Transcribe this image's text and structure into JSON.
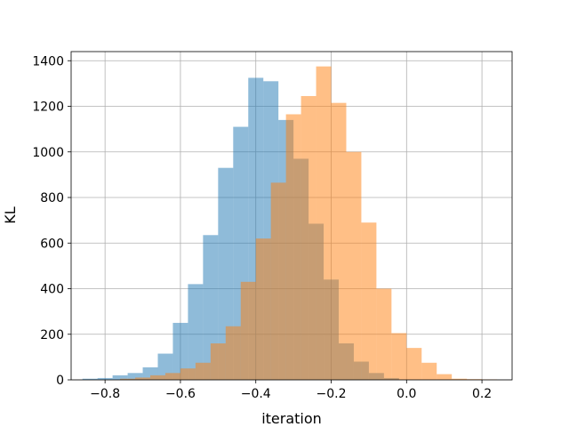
{
  "chart_data": {
    "type": "bar",
    "title": "",
    "xlabel": "iteration",
    "ylabel": "KL",
    "xlim": [
      -0.89,
      0.28
    ],
    "ylim": [
      0,
      1440
    ],
    "xticks": [
      -0.8,
      -0.6,
      -0.4,
      -0.2,
      0.0,
      0.2
    ],
    "xtick_labels": [
      "−0.8",
      "−0.6",
      "−0.4",
      "−0.2",
      "0.0",
      "0.2"
    ],
    "yticks": [
      0,
      200,
      400,
      600,
      800,
      1000,
      1200,
      1400
    ],
    "ytick_labels": [
      "0",
      "200",
      "400",
      "600",
      "800",
      "1000",
      "1200",
      "1400"
    ],
    "grid": true,
    "legend": "none",
    "series": [
      {
        "color": "#1f77b4",
        "alpha": 0.5,
        "bin_edges": [
          -0.86,
          -0.82,
          -0.78,
          -0.74,
          -0.7,
          -0.66,
          -0.62,
          -0.58,
          -0.54,
          -0.5,
          -0.46,
          -0.42,
          -0.38,
          -0.34,
          -0.3,
          -0.26,
          -0.22,
          -0.18,
          -0.14,
          -0.1,
          -0.06,
          -0.02
        ],
        "counts": [
          5,
          8,
          20,
          30,
          55,
          115,
          250,
          420,
          635,
          930,
          1110,
          1325,
          1310,
          1140,
          970,
          685,
          440,
          160,
          80,
          30,
          8
        ]
      },
      {
        "color": "#ff7f0e",
        "alpha": 0.5,
        "bin_edges": [
          -0.76,
          -0.72,
          -0.68,
          -0.64,
          -0.6,
          -0.56,
          -0.52,
          -0.48,
          -0.44,
          -0.4,
          -0.36,
          -0.32,
          -0.28,
          -0.24,
          -0.2,
          -0.16,
          -0.12,
          -0.08,
          -0.04,
          0.0,
          0.04,
          0.08,
          0.12,
          0.16,
          0.2,
          0.24
        ],
        "counts": [
          5,
          10,
          20,
          30,
          50,
          75,
          160,
          235,
          430,
          620,
          865,
          1165,
          1245,
          1375,
          1215,
          1000,
          690,
          400,
          205,
          140,
          75,
          25,
          5,
          3,
          2
        ]
      }
    ]
  }
}
